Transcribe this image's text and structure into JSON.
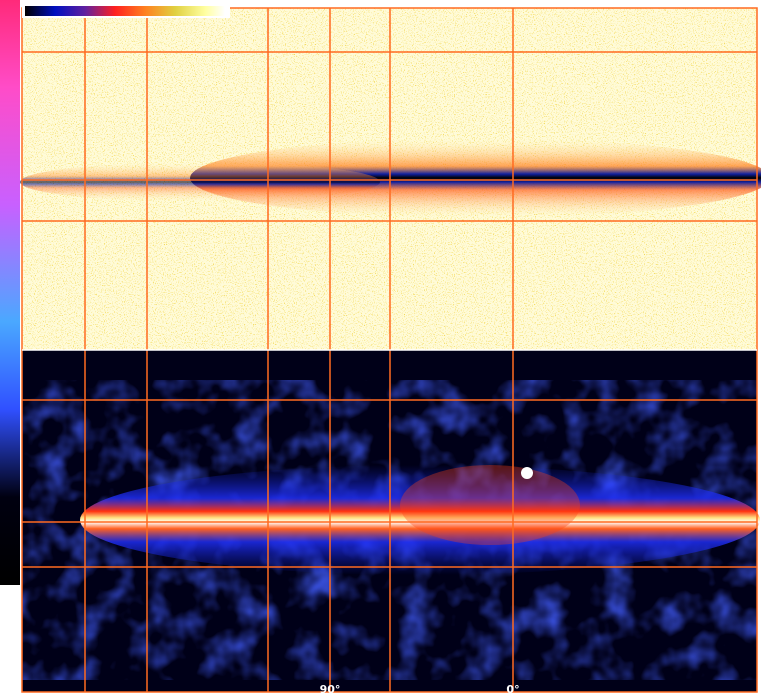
{
  "axis_labels": [
    "90°",
    "0°"
  ]
}
